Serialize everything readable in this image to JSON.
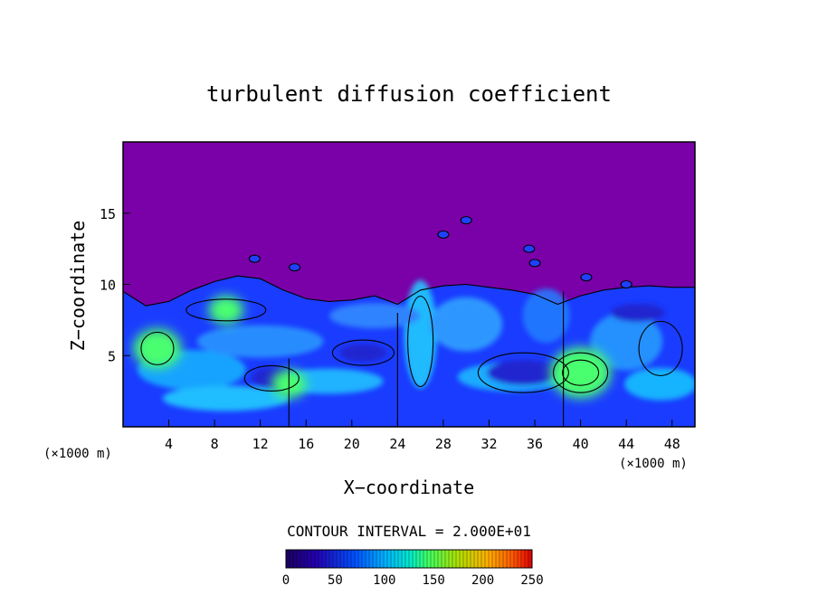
{
  "chart_data": {
    "type": "heatmap",
    "title": "turbulent diffusion coefficient",
    "xlabel": "X−coordinate",
    "ylabel": "Z−coordinate",
    "x_unit": "(×1000 m)",
    "z_unit": "(×1000 m)",
    "xlim": [
      0,
      50
    ],
    "ylim": [
      0,
      20
    ],
    "x_ticks": [
      "4",
      "8",
      "12",
      "16",
      "20",
      "24",
      "28",
      "32",
      "36",
      "40",
      "44",
      "48"
    ],
    "y_ticks": [
      "5",
      "10",
      "15"
    ],
    "contour_interval_label": "CONTOUR INTERVAL = 2.000E+01",
    "contour_interval": 20,
    "colorbar": {
      "ticks": [
        "0",
        "50",
        "100",
        "150",
        "200",
        "250"
      ],
      "range": [
        0,
        250
      ],
      "colors": [
        "#7a00a8",
        "#2a00c8",
        "#0044ff",
        "#00a0ff",
        "#00e8e0",
        "#40ff60",
        "#b0ff20",
        "#ffd000",
        "#ff6a00",
        "#e00000"
      ]
    },
    "background_color": "#7a00a8",
    "features": [
      {
        "kind": "turbulent-layer-top",
        "x": [
          0,
          2,
          4,
          6,
          8,
          10,
          12,
          14,
          16,
          18,
          20,
          22,
          24,
          26,
          28,
          30,
          32,
          34,
          36,
          38,
          40,
          42,
          44,
          46,
          48,
          50
        ],
        "z": [
          9.5,
          8.5,
          8.8,
          9.6,
          10.2,
          10.6,
          10.4,
          9.6,
          9.0,
          8.8,
          8.9,
          9.2,
          8.6,
          9.6,
          9.9,
          10.0,
          9.8,
          9.6,
          9.3,
          8.6,
          9.2,
          9.6,
          9.8,
          9.9,
          9.8,
          9.8
        ]
      },
      {
        "kind": "max-region",
        "x": 40,
        "z": 3.8,
        "value": 120
      },
      {
        "kind": "max-region",
        "x": 3,
        "z": 5.5,
        "value": 110
      },
      {
        "kind": "max-region",
        "x": 9,
        "z": 8.2,
        "value": 100
      },
      {
        "kind": "max-region",
        "x": 14.5,
        "z": 3.0,
        "value": 100
      }
    ]
  }
}
